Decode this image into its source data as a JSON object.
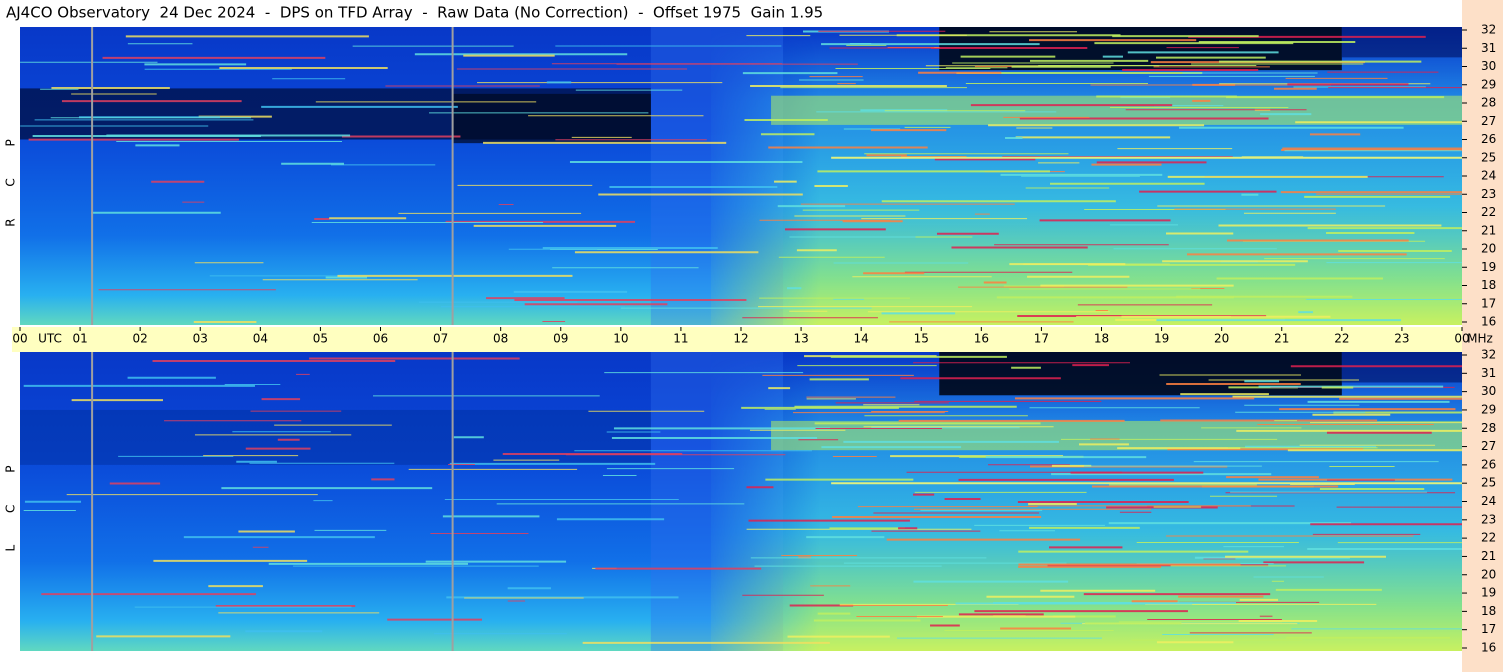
{
  "chart_data": {
    "type": "spectrogram",
    "title": "AJ4CO Observatory  24 Dec 2024  -  DPS on TFD Array  -  Raw Data (No Correction)  -  Offset 1975  Gain 1.95",
    "x_unit": "UTC",
    "y_unit": "MHz",
    "xlim": [
      0,
      24
    ],
    "xticks": [
      {
        "value": 0,
        "label": "00"
      },
      {
        "value": 1,
        "label": "01"
      },
      {
        "value": 2,
        "label": "02"
      },
      {
        "value": 3,
        "label": "03"
      },
      {
        "value": 4,
        "label": "04"
      },
      {
        "value": 5,
        "label": "05"
      },
      {
        "value": 6,
        "label": "06"
      },
      {
        "value": 7,
        "label": "07"
      },
      {
        "value": 8,
        "label": "08"
      },
      {
        "value": 9,
        "label": "09"
      },
      10,
      11,
      12,
      13,
      14,
      15,
      16,
      17,
      18,
      19,
      20,
      21,
      22,
      23,
      {
        "value": 24,
        "label": "00"
      }
    ],
    "ylim": [
      16,
      32
    ],
    "yticks": [
      16,
      17,
      18,
      19,
      20,
      21,
      22,
      23,
      24,
      25,
      26,
      27,
      28,
      29,
      30,
      31,
      32
    ],
    "panels": [
      {
        "label": "R C P"
      },
      {
        "label": "L C P"
      }
    ]
  }
}
